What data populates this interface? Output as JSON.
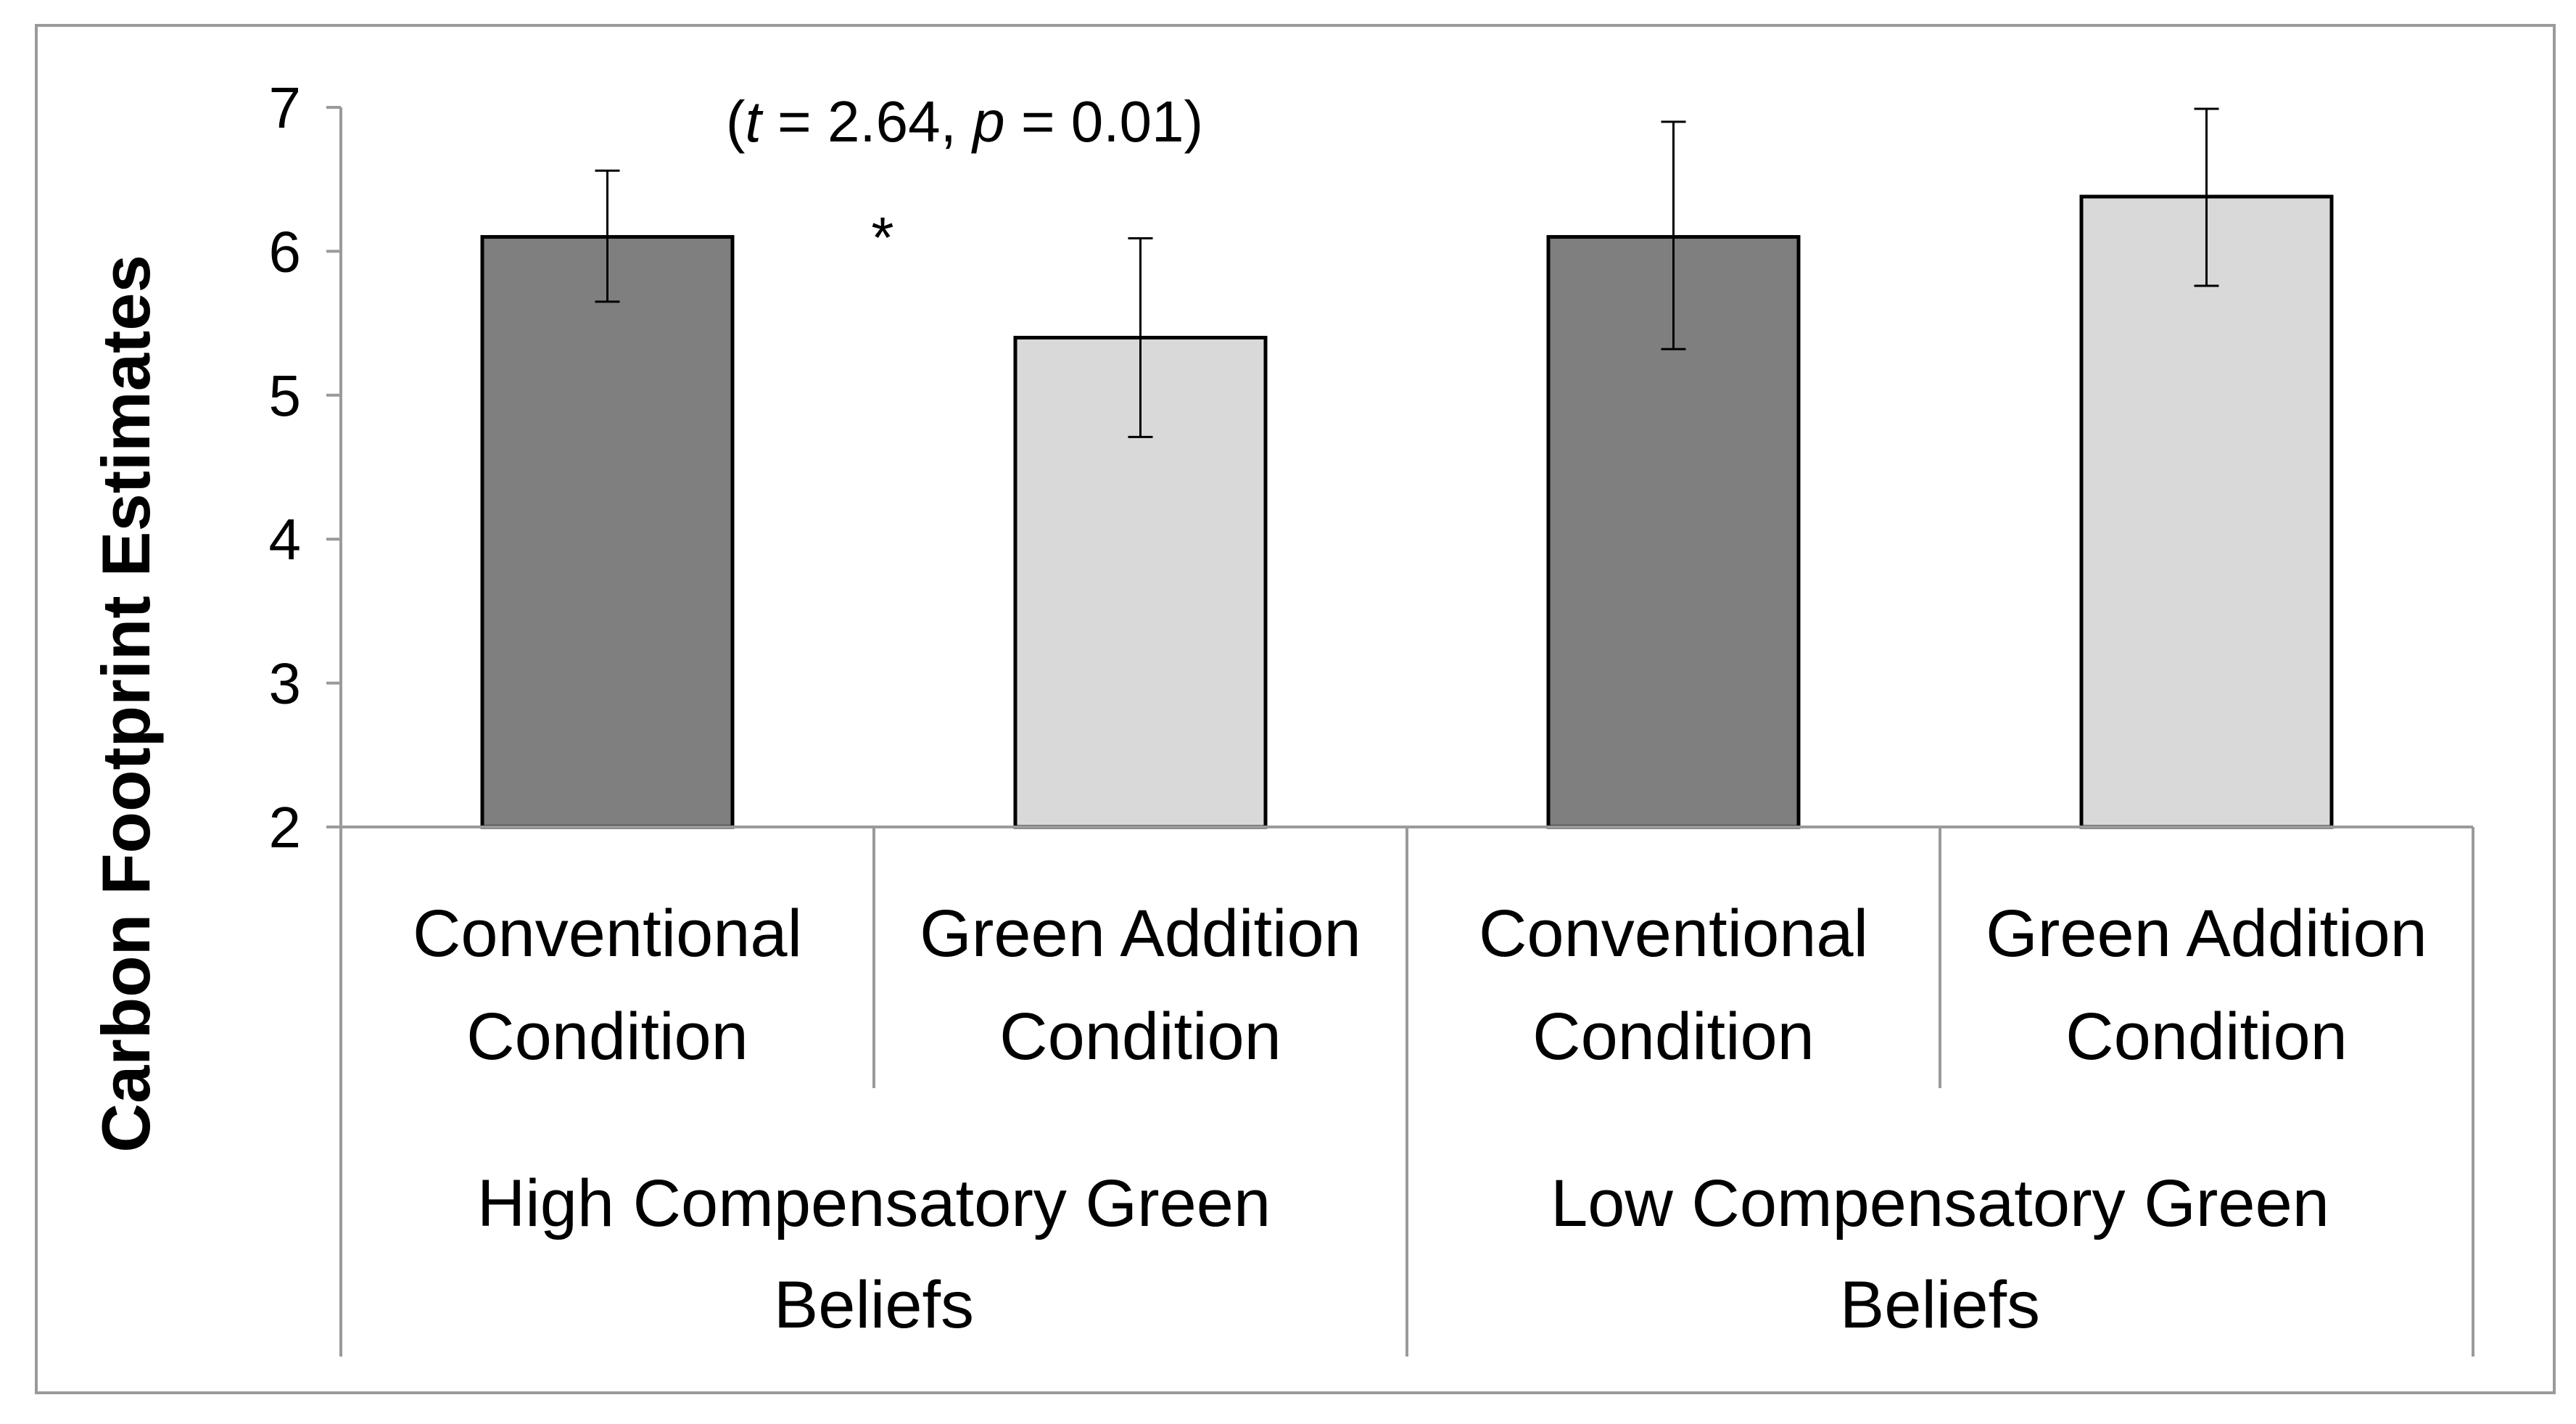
{
  "chart_data": {
    "type": "bar",
    "title": "",
    "xlabel": "",
    "ylabel": "Carbon Footprint Estimates",
    "ylim": [
      2,
      7
    ],
    "yticks": [
      2,
      3,
      4,
      5,
      6,
      7
    ],
    "grid": false,
    "legend": "none",
    "colors": {
      "conventional": "#7f7f7f",
      "green_addition": "#d9d9d9",
      "outline": "#000000",
      "axis": "#9a9a9a",
      "frame": "#9a9a9a"
    },
    "groups": [
      {
        "label_lines": [
          "High Compensatory Green",
          "Beliefs"
        ],
        "bars": [
          {
            "label_lines": [
              "Conventional",
              "Condition"
            ],
            "condition": "conventional",
            "value": 6.1,
            "error_low": 5.65,
            "error_high": 6.56
          },
          {
            "label_lines": [
              "Green Addition",
              "Condition"
            ],
            "condition": "green_addition",
            "value": 5.4,
            "error_low": 4.71,
            "error_high": 6.09
          }
        ]
      },
      {
        "label_lines": [
          "Low Compensatory Green",
          "Beliefs"
        ],
        "bars": [
          {
            "label_lines": [
              "Conventional",
              "Condition"
            ],
            "condition": "conventional",
            "value": 6.1,
            "error_low": 5.32,
            "error_high": 6.9
          },
          {
            "label_lines": [
              "Green Addition",
              "Condition"
            ],
            "condition": "green_addition",
            "value": 6.38,
            "error_low": 5.76,
            "error_high": 6.99
          }
        ]
      }
    ],
    "annotations": {
      "significance_marker": "*",
      "stats": {
        "open": "(",
        "t_symbol": "t",
        "t_text": " = 2.64, ",
        "p_symbol": "p",
        "p_text": " = 0.01)"
      }
    }
  }
}
